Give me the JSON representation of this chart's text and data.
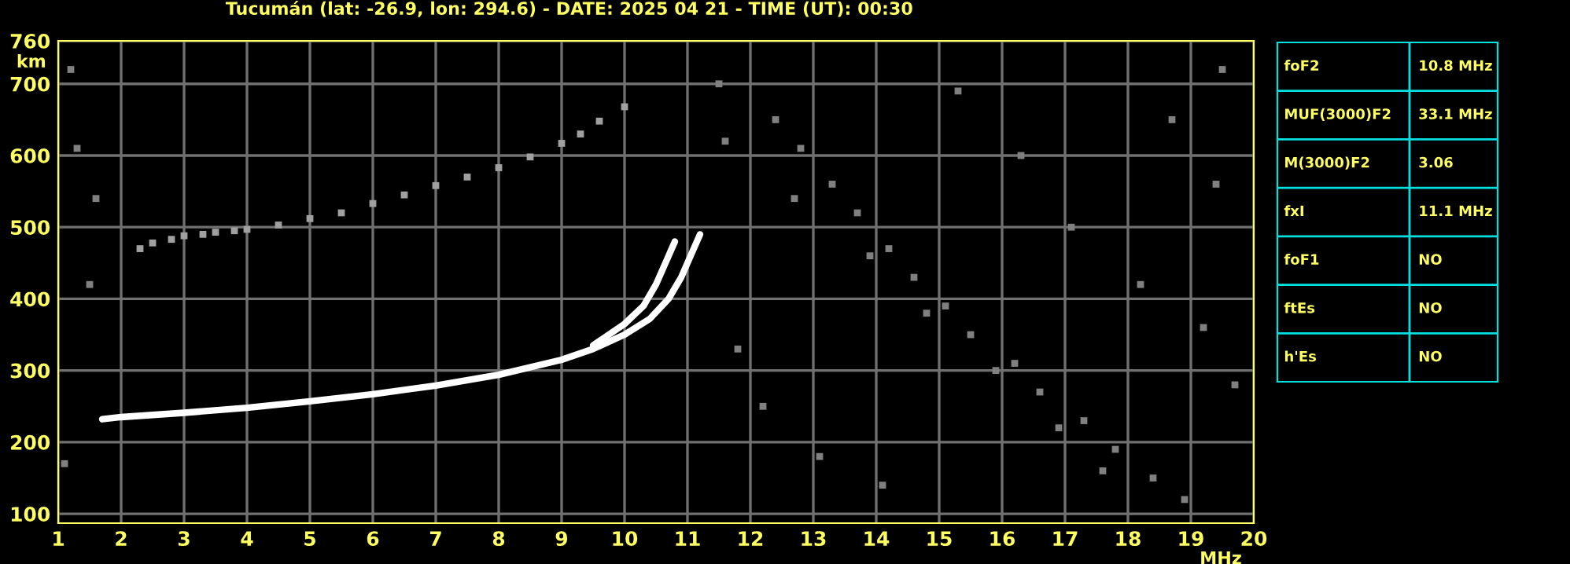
{
  "chart_data": [
    {
      "type": "scatter",
      "title": "Tucumán (lat: -26.9, lon: 294.6) - DATE: 2025 04 21 - TIME (UT): 00:30",
      "xlabel": "MHz",
      "ylabel": "km",
      "xlim": [
        1,
        20
      ],
      "ylim": [
        87,
        760
      ],
      "xticks": [
        1,
        2,
        3,
        4,
        5,
        6,
        7,
        8,
        9,
        10,
        11,
        12,
        13,
        14,
        15,
        16,
        17,
        18,
        19,
        20
      ],
      "yticks": [
        100,
        200,
        300,
        400,
        500,
        600,
        700,
        760
      ],
      "grid": true,
      "legend": false,
      "series": [
        {
          "type": "line",
          "color": "#ffffff",
          "line_style": "solid",
          "x": [
            1.7,
            2,
            3,
            4,
            5,
            6,
            7,
            8,
            9,
            9.5,
            10,
            10.4,
            10.7,
            10.9,
            11.05,
            11.2
          ],
          "values": [
            232,
            235,
            241,
            248,
            257,
            267,
            279,
            294,
            315,
            330,
            350,
            372,
            400,
            430,
            460,
            490
          ]
        },
        {
          "type": "line",
          "color": "#ffffff",
          "line_style": "solid",
          "x": [
            9.5,
            10,
            10.3,
            10.5,
            10.65,
            10.8
          ],
          "values": [
            335,
            365,
            390,
            420,
            450,
            480
          ]
        },
        {
          "type": "scatter",
          "marker": "square",
          "color": "#a0a0a0",
          "x": [
            2.3,
            2.5,
            2.8,
            3,
            3.3,
            3.5,
            3.8,
            4,
            4.5,
            5,
            5.5,
            6,
            6.5,
            7,
            7.5,
            8,
            8.5,
            9,
            9.3,
            9.6,
            10
          ],
          "values": [
            470,
            478,
            483,
            488,
            490,
            493,
            495,
            497,
            503,
            512,
            520,
            533,
            545,
            558,
            570,
            583,
            598,
            617,
            630,
            648,
            668
          ]
        },
        {
          "type": "scatter",
          "marker": "square",
          "color": "#808080",
          "x": [
            1.2,
            1.3,
            1.6,
            1.1,
            1.5,
            11.5,
            12.4,
            12.8,
            13.3,
            13.7,
            14.2,
            14.6,
            15.1,
            15.5,
            16.2,
            16.6,
            17.3,
            17.8,
            18.4,
            18.9,
            19.5,
            11.8,
            12.2,
            13.1,
            14.1,
            15.3,
            16.3,
            17.1,
            18.2,
            19.2,
            19.7,
            11.6,
            12.7,
            13.9,
            14.8,
            15.9,
            16.9,
            17.6,
            18.7,
            19.4
          ],
          "values": [
            720,
            610,
            540,
            170,
            420,
            700,
            650,
            610,
            560,
            520,
            470,
            430,
            390,
            350,
            310,
            270,
            230,
            190,
            150,
            120,
            720,
            330,
            250,
            180,
            140,
            690,
            600,
            500,
            420,
            360,
            280,
            620,
            540,
            460,
            380,
            300,
            220,
            160,
            650,
            560
          ]
        }
      ]
    },
    {
      "type": "other",
      "categories": [
        "foF2",
        "MUF(3000)F2",
        "M(3000)F2",
        "fxI",
        "foF1",
        "ftEs",
        "h'Es"
      ],
      "value_labels": [
        "10.8 MHz",
        "33.1 MHz",
        "3.06",
        "11.1 MHz",
        "NO",
        "NO",
        "NO"
      ]
    }
  ]
}
